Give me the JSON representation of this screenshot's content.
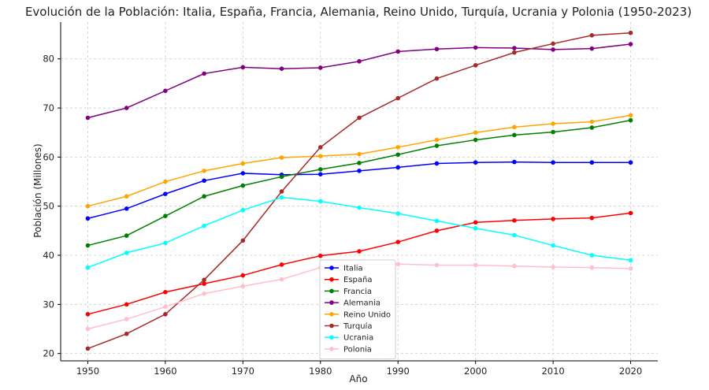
{
  "chart_data": {
    "type": "line",
    "title": "Evolución de la Población: Italia, España, Francia, Alemania, Reino Unido, Turquía, Ucrania y Polonia (1950-2023)",
    "xlabel": "Año",
    "ylabel": "Población (Millones)",
    "x": [
      1950,
      1955,
      1960,
      1965,
      1970,
      1975,
      1980,
      1985,
      1990,
      1995,
      2000,
      2005,
      2010,
      2015,
      2020
    ],
    "xticks": [
      1950,
      1960,
      1970,
      1980,
      1990,
      2000,
      2010,
      2020
    ],
    "yticks": [
      20,
      30,
      40,
      50,
      60,
      70,
      80
    ],
    "xlim": [
      1946.5,
      2023.5
    ],
    "ylim": [
      18.5,
      87.5
    ],
    "grid": true,
    "legend_position": "bottom-center",
    "series": [
      {
        "name": "Italia",
        "color": "#0000ff",
        "values": [
          47.5,
          49.5,
          52.5,
          55.2,
          56.7,
          56.4,
          56.5,
          57.2,
          57.9,
          58.7,
          58.9,
          59.0,
          58.9,
          58.9,
          58.9
        ]
      },
      {
        "name": "España",
        "color": "#ff0000",
        "values": [
          28.0,
          30.0,
          32.5,
          34.2,
          35.9,
          38.1,
          39.9,
          40.8,
          42.7,
          45.0,
          46.7,
          47.1,
          47.4,
          47.6,
          48.6
        ]
      },
      {
        "name": "Francia",
        "color": "#008000",
        "values": [
          42.0,
          44.0,
          48.0,
          52.0,
          54.2,
          56.0,
          57.5,
          58.8,
          60.5,
          62.3,
          63.5,
          64.5,
          65.1,
          66.0,
          67.5
        ]
      },
      {
        "name": "Alemania",
        "color": "#800080",
        "values": [
          68.0,
          70.0,
          73.5,
          77.0,
          78.3,
          78.0,
          78.2,
          79.5,
          81.5,
          82.0,
          82.3,
          82.2,
          81.9,
          82.1,
          83.0
        ]
      },
      {
        "name": "Reino Unido",
        "color": "#ffa500",
        "values": [
          50.0,
          52.0,
          55.0,
          57.2,
          58.7,
          59.9,
          60.2,
          60.6,
          62.0,
          63.5,
          65.0,
          66.1,
          66.8,
          67.2,
          68.5
        ]
      },
      {
        "name": "Turquía",
        "color": "#a52a2a",
        "values": [
          21.0,
          24.0,
          28.0,
          35.0,
          43.0,
          53.0,
          62.0,
          68.0,
          72.0,
          76.0,
          78.7,
          81.3,
          83.1,
          84.8,
          85.3
        ]
      },
      {
        "name": "Ucrania",
        "color": "#00ffff",
        "values": [
          37.5,
          40.5,
          42.5,
          46.0,
          49.2,
          51.8,
          51.0,
          49.7,
          48.5,
          47.0,
          45.5,
          44.1,
          42.0,
          40.0,
          39.0
        ]
      },
      {
        "name": "Polonia",
        "color": "#ffc0cb",
        "values": [
          25.0,
          27.0,
          29.5,
          32.2,
          33.7,
          35.1,
          37.5,
          38.2,
          38.2,
          38.0,
          38.0,
          37.8,
          37.6,
          37.5,
          37.3
        ]
      }
    ]
  }
}
